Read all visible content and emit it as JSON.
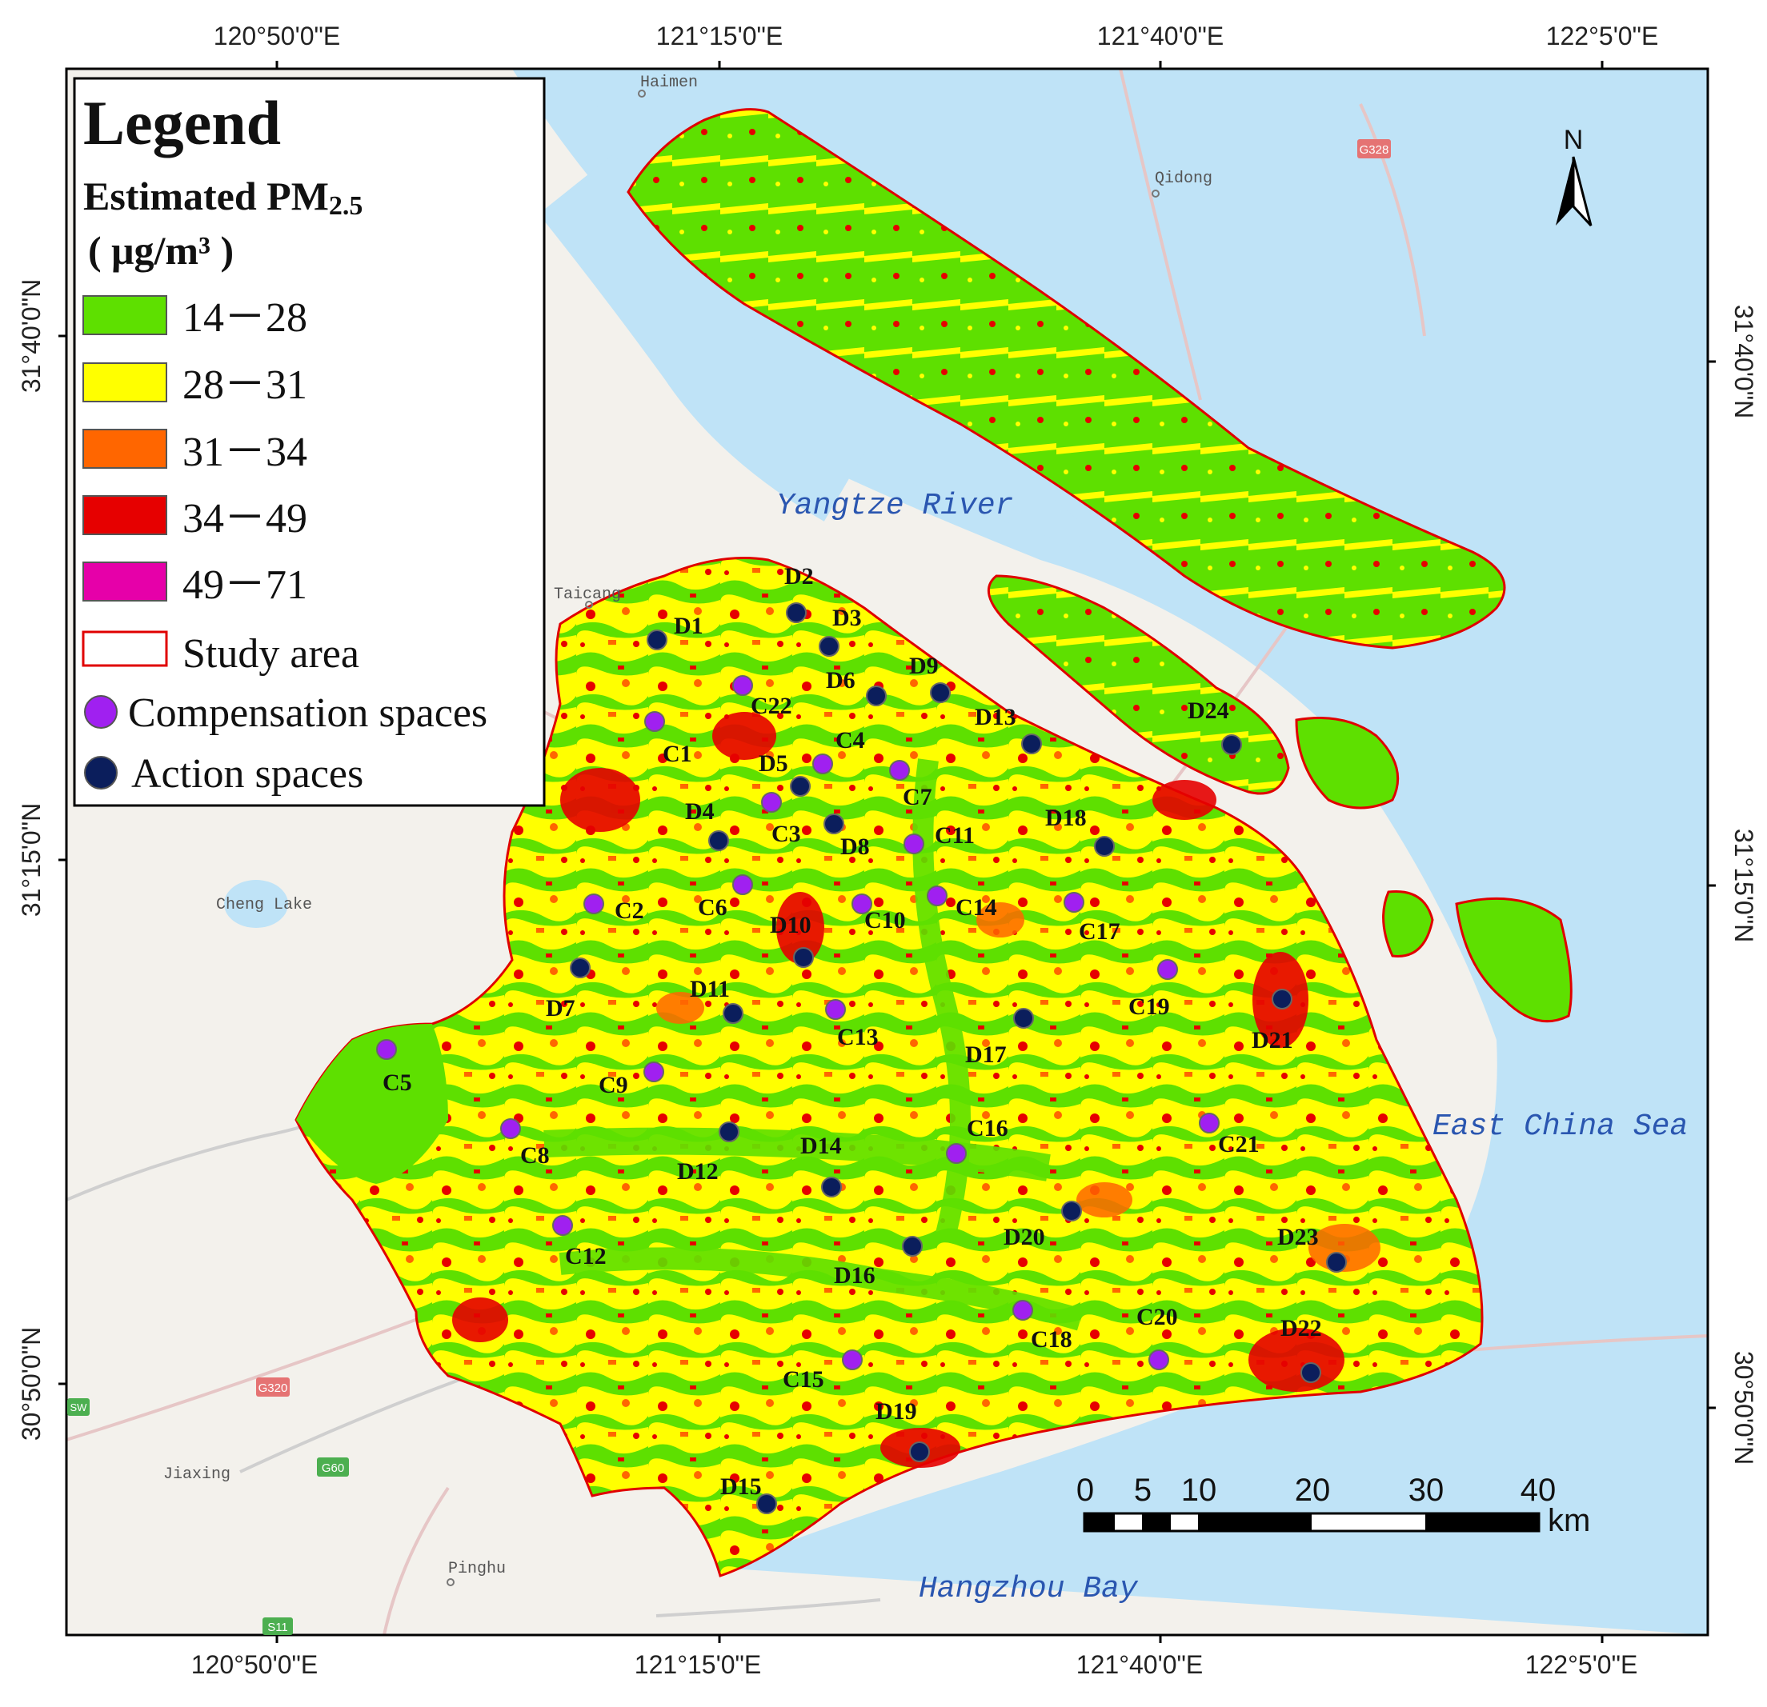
{
  "map": {
    "frame_coords": {
      "top": [
        "120°50'0\"E",
        "121°15'0\"E",
        "121°40'0\"E",
        "122°5'0\"E"
      ],
      "bottom": [
        "120°50'0\"E",
        "121°15'0\"E",
        "121°40'0\"E",
        "122°5'0\"E"
      ],
      "left": [
        "31°40'0\"N",
        "31°15'0\"N",
        "30°50'0\"N"
      ],
      "right": [
        "31°40'0\"N",
        "31°15'0\"N",
        "30°50'0\"N"
      ]
    },
    "water_labels": {
      "yangtze": "Yangtze River",
      "east_china_sea": "East China Sea",
      "hangzhou_bay": "Hangzhou Bay"
    },
    "towns": [
      "Haimen",
      "Qidong",
      "Taicang",
      "Cheng Lake",
      "Jiaxing",
      "Pinghu"
    ],
    "road_badges": [
      "G328",
      "G320",
      "G60",
      "S11",
      "SW"
    ],
    "north_arrow_label": "N",
    "colors": {
      "water": "#bfe3f7",
      "land": "#f3f1ec",
      "green": "#5ee000",
      "yellow": "#ffff00",
      "orange": "#ff6600",
      "red": "#e60000",
      "magenta": "#e600a9",
      "boundary": "#e00000",
      "compensation": "#a020f0",
      "action": "#0b1e5c"
    }
  },
  "legend": {
    "title": "Legend",
    "subtitle_main": "Estimated PM",
    "subtitle_sub": "2.5",
    "unit": "( μg/m³ )",
    "classes": [
      {
        "label": "14－28",
        "color": "#5ee000"
      },
      {
        "label": "28－31",
        "color": "#ffff00"
      },
      {
        "label": "31－34",
        "color": "#ff6600"
      },
      {
        "label": "34－49",
        "color": "#e60000"
      },
      {
        "label": "49－71",
        "color": "#e600a9"
      }
    ],
    "study_area": "Study area",
    "compensation": "Compensation spaces",
    "action": "Action spaces"
  },
  "scale_bar": {
    "ticks": [
      "0",
      "5",
      "10",
      "20",
      "30",
      "40"
    ],
    "unit": "km"
  },
  "sites": {
    "compensation": [
      "C1",
      "C2",
      "C3",
      "C4",
      "C5",
      "C6",
      "C7",
      "C8",
      "C9",
      "C10",
      "C11",
      "C12",
      "C13",
      "C14",
      "C15",
      "C16",
      "C17",
      "C18",
      "C19",
      "C20",
      "C21",
      "C22"
    ],
    "action": [
      "D1",
      "D2",
      "D3",
      "D4",
      "D5",
      "D6",
      "D7",
      "D8",
      "D9",
      "D10",
      "D11",
      "D12",
      "D13",
      "D14",
      "D15",
      "D16",
      "D17",
      "D18",
      "D19",
      "D20",
      "D21",
      "D22",
      "D23",
      "D24"
    ]
  }
}
